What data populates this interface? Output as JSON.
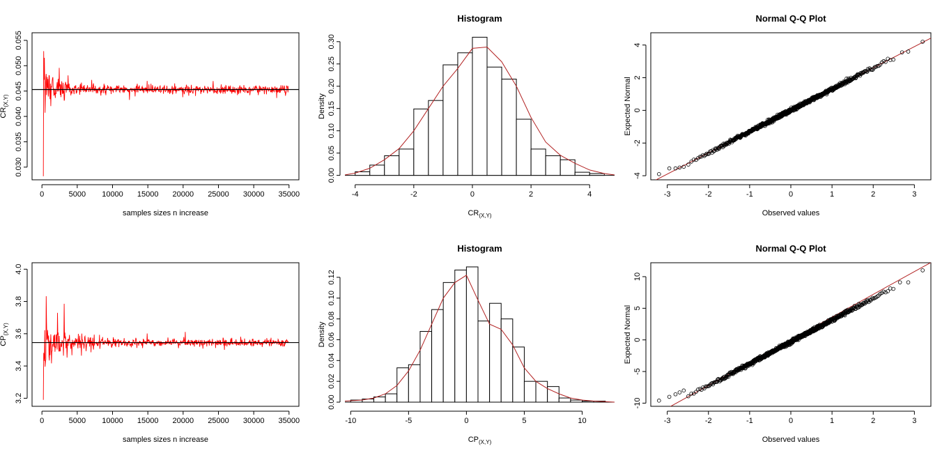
{
  "colors": {
    "series": "#ff0000",
    "density": "#b22222",
    "ref": "#000000",
    "points": "#000000"
  },
  "chart_data": [
    {
      "id": "trace-cr",
      "type": "line",
      "title": "",
      "xlabel": "samples sizes n increase",
      "ylabel_main": "CR",
      "ylabel_sub": "(X,Y)",
      "xlim": [
        -1400,
        36400
      ],
      "ylim": [
        0.0275,
        0.0565
      ],
      "xticks": [
        0,
        5000,
        10000,
        15000,
        20000,
        25000,
        30000,
        35000
      ],
      "yticks": [
        0.03,
        0.035,
        0.04,
        0.045,
        0.05,
        0.055
      ],
      "ytick_labels": [
        "0.030",
        "0.035",
        "0.040",
        "0.045",
        "0.050",
        "0.055"
      ],
      "hline": 0.0453,
      "x_range": [
        200,
        34900
      ],
      "start_value": 0.0282,
      "series": [
        {
          "name": "CR(X,Y)",
          "x_step": 50,
          "seed": 7,
          "spike_scale": 0.0095,
          "noise_scale": 0.0011,
          "decay": 0.78
        }
      ]
    },
    {
      "id": "hist-cr",
      "type": "histogram",
      "title": "Histogram",
      "xlabel_main": "CR",
      "xlabel_sub": "(X,Y)",
      "ylabel": "Density",
      "xlim": [
        -4.35,
        4.85
      ],
      "ylim": [
        -0.01,
        0.32
      ],
      "xticks": [
        -4,
        -2,
        0,
        2,
        4
      ],
      "yticks": [
        0.0,
        0.05,
        0.1,
        0.15,
        0.2,
        0.25,
        0.3
      ],
      "ytick_labels": [
        "0.00",
        "0.05",
        "0.10",
        "0.15",
        "0.20",
        "0.25",
        "0.30"
      ],
      "bin_edges": [
        -4.0,
        -3.5,
        -3.0,
        -2.5,
        -2.0,
        -1.5,
        -1.0,
        -0.5,
        0.0,
        0.5,
        1.0,
        1.5,
        2.0,
        2.5,
        3.0,
        3.5,
        4.0,
        4.5
      ],
      "densities": [
        0.008,
        0.023,
        0.044,
        0.059,
        0.149,
        0.168,
        0.248,
        0.275,
        0.31,
        0.243,
        0.216,
        0.126,
        0.059,
        0.044,
        0.035,
        0.007,
        0.004
      ],
      "density_x": [
        -4.35,
        -4,
        -3.5,
        -3,
        -2.5,
        -2,
        -1.5,
        -1,
        -0.5,
        0,
        0.5,
        1,
        1.5,
        2,
        2.5,
        3,
        3.5,
        4,
        4.5,
        4.85
      ],
      "density_y": [
        0.001,
        0.005,
        0.016,
        0.035,
        0.06,
        0.1,
        0.15,
        0.2,
        0.24,
        0.285,
        0.288,
        0.255,
        0.2,
        0.13,
        0.075,
        0.045,
        0.027,
        0.012,
        0.004,
        0.001
      ]
    },
    {
      "id": "qq-cr",
      "type": "scatter",
      "title": "Normal Q-Q Plot",
      "xlabel": "Observed values",
      "ylabel": "Expected Normal",
      "xlim": [
        -3.4,
        3.4
      ],
      "ylim": [
        -4.25,
        4.75
      ],
      "xticks": [
        -3,
        -2,
        -1,
        0,
        1,
        2,
        3
      ],
      "yticks": [
        -4,
        -2,
        0,
        2,
        4
      ],
      "ytick_labels": [
        "-4",
        "-2",
        "0",
        "2",
        "4"
      ],
      "n_points": 700,
      "slope": 1.3,
      "intercept": 0.0,
      "seed": 3,
      "points": [
        [
          -3.2,
          -3.9
        ],
        [
          -2.95,
          -3.55
        ],
        [
          -2.8,
          -3.55
        ],
        [
          -2.7,
          -3.5
        ],
        [
          -2.6,
          -3.45
        ],
        [
          2.7,
          3.55
        ],
        [
          2.85,
          3.6
        ],
        [
          3.2,
          4.2
        ]
      ],
      "ref_line": {
        "slope": 1.3,
        "intercept": 0.0
      }
    },
    {
      "id": "trace-cp",
      "type": "line",
      "title": "",
      "xlabel": "samples sizes n increase",
      "ylabel_main": "CP",
      "ylabel_sub": "(X,Y)",
      "xlim": [
        -1400,
        36400
      ],
      "ylim": [
        3.15,
        4.04
      ],
      "xticks": [
        0,
        5000,
        10000,
        15000,
        20000,
        25000,
        30000,
        35000
      ],
      "yticks": [
        3.2,
        3.4,
        3.6,
        3.8,
        4.0
      ],
      "ytick_labels": [
        "3.2",
        "3.4",
        "3.6",
        "3.8",
        "4.0"
      ],
      "hline": 3.545,
      "x_range": [
        200,
        34900
      ],
      "start_value": 3.19,
      "series": [
        {
          "name": "CP(X,Y)",
          "x_step": 50,
          "seed": 11,
          "spike_scale": 0.42,
          "noise_scale": 0.03,
          "decay": 0.75
        }
      ]
    },
    {
      "id": "hist-cp",
      "type": "histogram",
      "title": "Histogram",
      "xlabel_main": "CP",
      "xlabel_sub": "(X,Y)",
      "ylabel": "Density",
      "xlim": [
        -10.5,
        12.8
      ],
      "ylim": [
        -0.004,
        0.134
      ],
      "xticks": [
        -10,
        -5,
        0,
        5,
        10
      ],
      "yticks": [
        0.0,
        0.02,
        0.04,
        0.06,
        0.08,
        0.1,
        0.12
      ],
      "ytick_labels": [
        "0.00",
        "0.02",
        "0.04",
        "0.06",
        "0.08",
        "0.10",
        "0.12"
      ],
      "bin_edges": [
        -10,
        -9,
        -8,
        -7,
        -6,
        -5,
        -4,
        -3,
        -2,
        -1,
        0,
        1,
        2,
        3,
        4,
        5,
        6,
        7,
        8,
        9,
        10,
        11,
        12
      ],
      "densities": [
        0.002,
        0.003,
        0.005,
        0.008,
        0.033,
        0.036,
        0.068,
        0.089,
        0.115,
        0.127,
        0.13,
        0.078,
        0.095,
        0.08,
        0.053,
        0.02,
        0.02,
        0.015,
        0.004,
        0.002,
        0.001,
        0.001
      ],
      "density_x": [
        -10.5,
        -9,
        -8,
        -7,
        -6,
        -5,
        -4,
        -3,
        -2,
        -1,
        0,
        1,
        2,
        3,
        4,
        5,
        6,
        7,
        8,
        9,
        10,
        11,
        12.8
      ],
      "density_y": [
        0.001,
        0.002,
        0.004,
        0.008,
        0.016,
        0.03,
        0.05,
        0.075,
        0.1,
        0.115,
        0.122,
        0.098,
        0.075,
        0.07,
        0.055,
        0.033,
        0.02,
        0.013,
        0.008,
        0.004,
        0.002,
        0.001,
        0.0
      ]
    },
    {
      "id": "qq-cp",
      "type": "scatter",
      "title": "Normal Q-Q Plot",
      "xlabel": "Observed values",
      "ylabel": "Expected Normal",
      "xlim": [
        -3.4,
        3.4
      ],
      "ylim": [
        -10.5,
        12.2
      ],
      "xticks": [
        -3,
        -2,
        -1,
        0,
        1,
        2,
        3
      ],
      "yticks": [
        -10,
        -5,
        0,
        5,
        10
      ],
      "ytick_labels": [
        "-10",
        "-5",
        "0",
        "5",
        "10"
      ],
      "n_points": 700,
      "slope": 3.45,
      "intercept": -0.3,
      "seed": 5,
      "points": [
        [
          -3.2,
          -9.6
        ],
        [
          -2.95,
          -9.0
        ],
        [
          -2.8,
          -8.6
        ],
        [
          -2.7,
          -8.3
        ],
        [
          -2.6,
          -8.0
        ],
        [
          2.65,
          9.1
        ],
        [
          2.85,
          9.1
        ],
        [
          3.2,
          11.0
        ]
      ],
      "ref_line": {
        "slope": 3.6,
        "intercept": 0.0
      }
    }
  ]
}
